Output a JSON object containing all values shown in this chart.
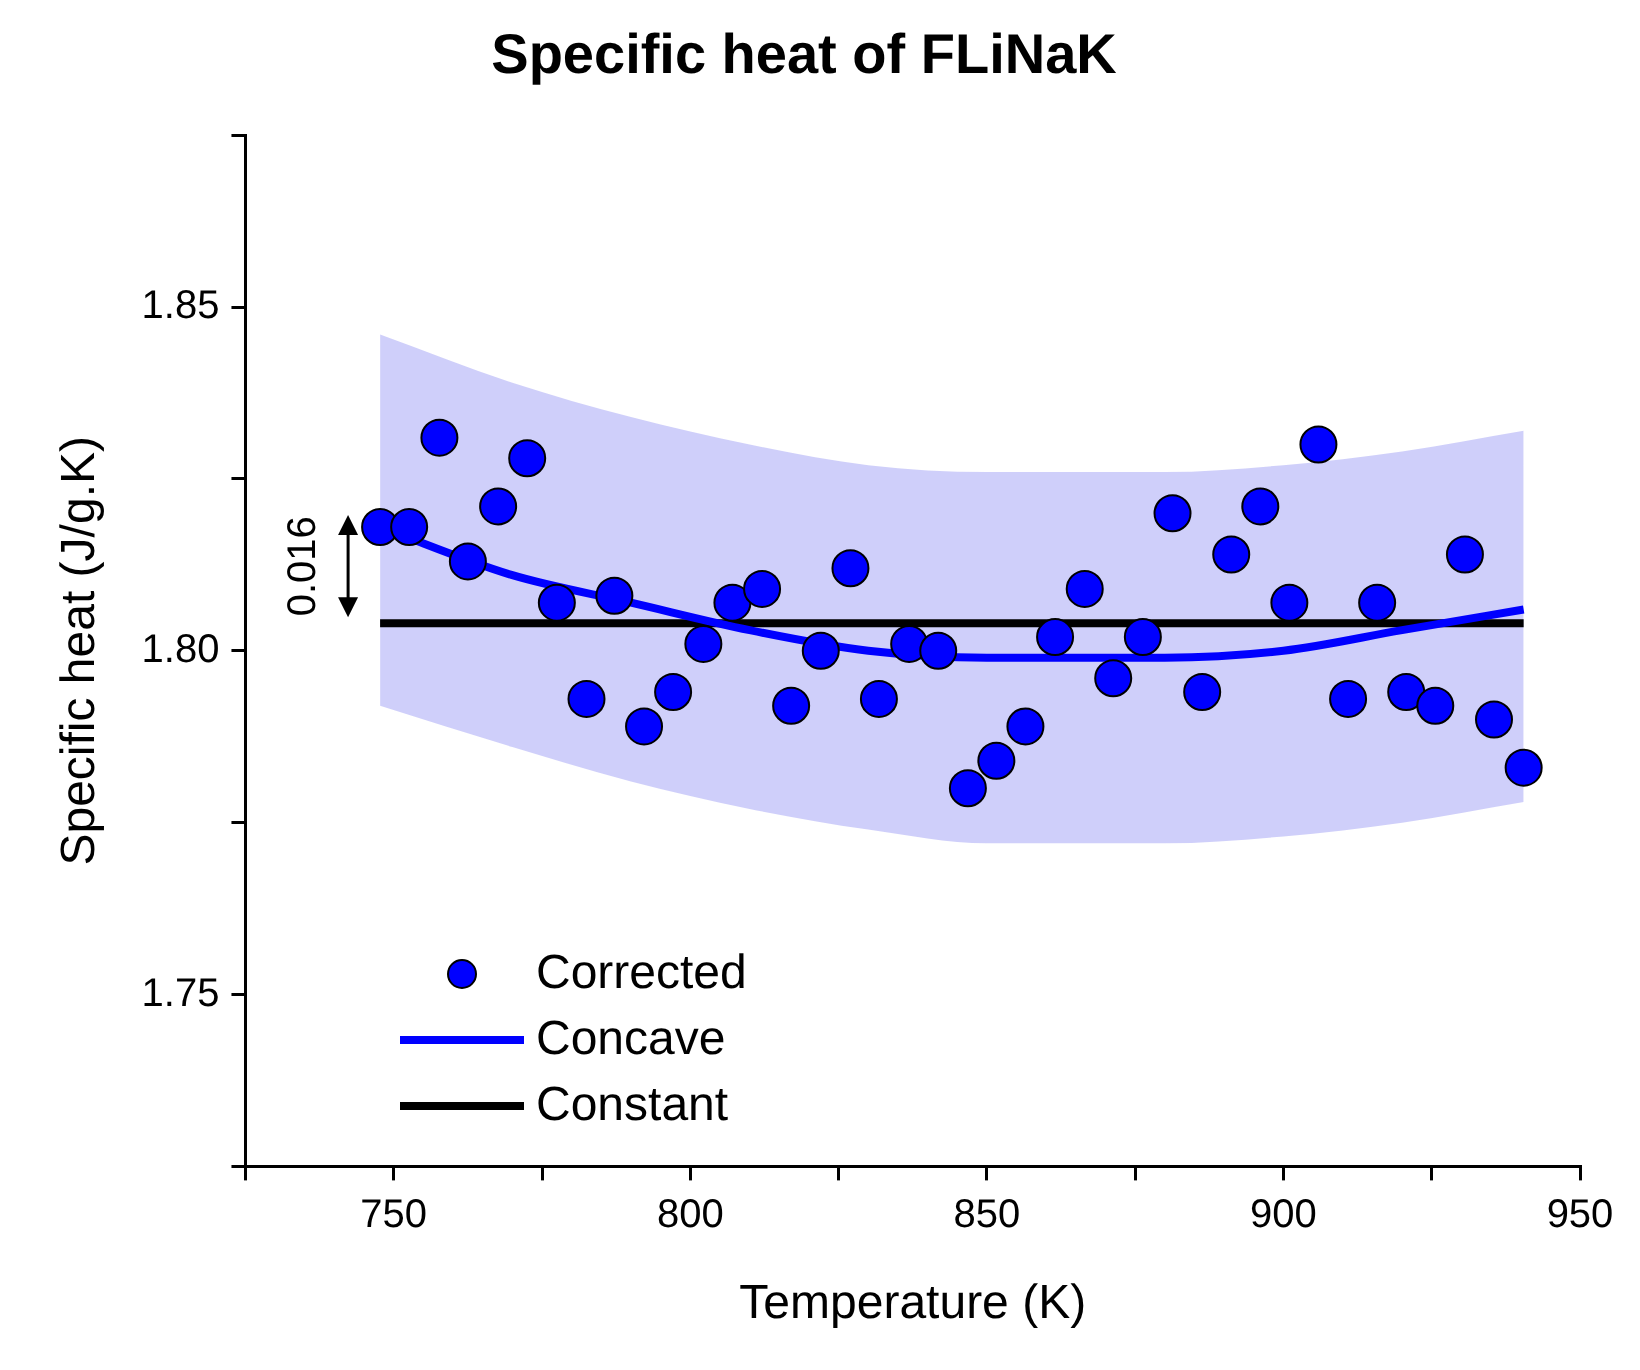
{
  "chart_data": {
    "type": "scatter",
    "title": "Specific heat of FLiNaK",
    "xlabel": "Temperature (K)",
    "ylabel": "Specific heat (J/g.K)",
    "xlim": [
      725,
      950
    ],
    "xticks": [
      {
        "value": 725,
        "label": null
      },
      750,
      {
        "value": 775,
        "label": null
      },
      800,
      {
        "value": 825,
        "label": null
      },
      850,
      {
        "value": 875,
        "label": null
      },
      900,
      {
        "value": 925,
        "label": null
      },
      950
    ],
    "ylim": [
      1.725,
      1.875
    ],
    "yticks": [
      {
        "value": 1.725,
        "label": null
      },
      1.75,
      {
        "value": 1.775,
        "label": null
      },
      {
        "value": 1.8,
        "label": "1.80"
      },
      {
        "value": 1.825,
        "label": null
      },
      1.85,
      {
        "value": 1.875,
        "label": null
      }
    ],
    "grid": false,
    "legend": "bottom left",
    "annotations": [
      "0.016"
    ],
    "series": [
      {
        "name": "Corrected",
        "marker": "circle",
        "color": "#0000ff",
        "x": [
          747.7,
          752.6,
          757.7,
          762.5,
          767.6,
          772.5,
          777.5,
          782.5,
          787.2,
          792.2,
          797.1,
          802.2,
          807.1,
          812.1,
          817.0,
          822.0,
          827.0,
          831.8,
          836.9,
          841.8,
          846.8,
          851.6,
          856.5,
          861.5,
          866.5,
          871.3,
          876.3,
          881.3,
          886.3,
          891.2,
          896.1,
          901.0,
          905.9,
          910.9,
          915.8,
          920.7,
          925.6,
          930.6,
          935.5,
          940.5
        ],
        "values": [
          1.818,
          1.818,
          1.831,
          1.813,
          1.821,
          1.828,
          1.807,
          1.793,
          1.808,
          1.789,
          1.794,
          1.801,
          1.807,
          1.809,
          1.792,
          1.8,
          1.812,
          1.793,
          1.801,
          1.8,
          1.78,
          1.784,
          1.789,
          1.802,
          1.809,
          1.796,
          1.802,
          1.82,
          1.794,
          1.814,
          1.821,
          1.807,
          1.83,
          1.793,
          1.807,
          1.794,
          1.792,
          1.814,
          1.79,
          1.783
        ]
      },
      {
        "name": "Concave",
        "type": "line",
        "marker": "none",
        "color": "#0000ff",
        "line_style": "solid",
        "x": [
          747.7,
          770,
          790,
          810,
          830,
          850,
          865,
          880,
          900,
          920,
          940.5
        ],
        "values": [
          1.818,
          1.811,
          1.807,
          1.803,
          1.8,
          1.799,
          1.799,
          1.799,
          1.8,
          1.803,
          1.806
        ],
        "upper": [
          1.846,
          1.839,
          1.834,
          1.83,
          1.827,
          1.826,
          1.826,
          1.826,
          1.827,
          1.829,
          1.832
        ],
        "lower": [
          1.792,
          1.786,
          1.781,
          1.777,
          1.774,
          1.772,
          1.772,
          1.772,
          1.773,
          1.775,
          1.778
        ]
      },
      {
        "name": "Constant",
        "type": "line",
        "marker": "none",
        "color": "#000000",
        "line_style": "solid",
        "x": [
          747.7,
          940.5
        ],
        "values": [
          1.804,
          1.804
        ]
      }
    ]
  }
}
